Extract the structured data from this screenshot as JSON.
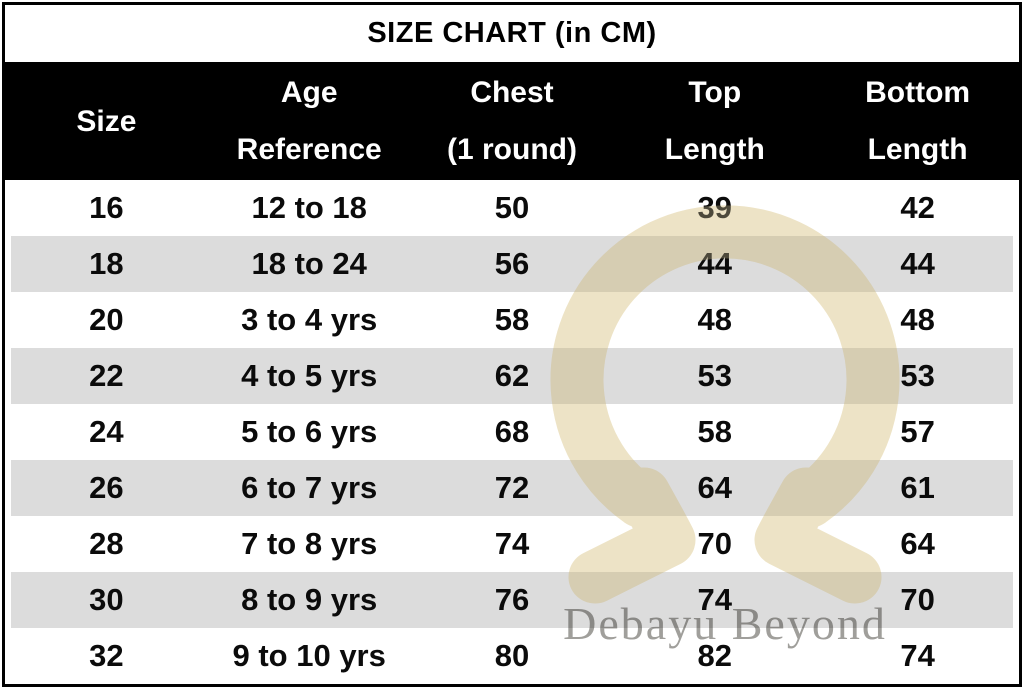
{
  "title": "SIZE CHART (in CM)",
  "chart_data": {
    "type": "table",
    "title": "SIZE CHART (in CM)",
    "units": "cm",
    "columns": [
      "Size",
      "Age Reference",
      "Chest (1 round)",
      "Top Length",
      "Bottom Length"
    ],
    "rows": [
      [
        "16",
        "12 to 18",
        "50",
        "39",
        "42"
      ],
      [
        "18",
        "18 to 24",
        "56",
        "44",
        "44"
      ],
      [
        "20",
        "3 to 4 yrs",
        "58",
        "48",
        "48"
      ],
      [
        "22",
        "4 to 5 yrs",
        "62",
        "53",
        "53"
      ],
      [
        "24",
        "5 to 6 yrs",
        "68",
        "58",
        "57"
      ],
      [
        "26",
        "6 to 7 yrs",
        "72",
        "64",
        "61"
      ],
      [
        "28",
        "7 to 8 yrs",
        "74",
        "70",
        "64"
      ],
      [
        "30",
        "8 to 9 yrs",
        "76",
        "74",
        "70"
      ],
      [
        "32",
        "9 to 10 yrs",
        "80",
        "82",
        "74"
      ]
    ]
  },
  "header": {
    "columns": [
      {
        "id": "size",
        "lines": [
          "Size"
        ]
      },
      {
        "id": "age-reference",
        "lines": [
          "Age",
          "Reference"
        ]
      },
      {
        "id": "chest",
        "lines": [
          "Chest",
          "(1 round)"
        ]
      },
      {
        "id": "top-length",
        "lines": [
          "Top",
          "Length"
        ]
      },
      {
        "id": "bottom-length",
        "lines": [
          "Bottom",
          "Length"
        ]
      }
    ]
  },
  "watermark": {
    "brand": "Debayu Beyond",
    "logo": "omega-horseshoe-icon",
    "logo_color": "#eee4c7",
    "text_color": "#8f8e8a"
  },
  "colors": {
    "header_bg": "#000000",
    "header_text": "#ffffff",
    "stripe_bg": "#dcdcdc",
    "border": "#000000",
    "body_text": "#0b0b0b",
    "title_text": "#000000"
  }
}
